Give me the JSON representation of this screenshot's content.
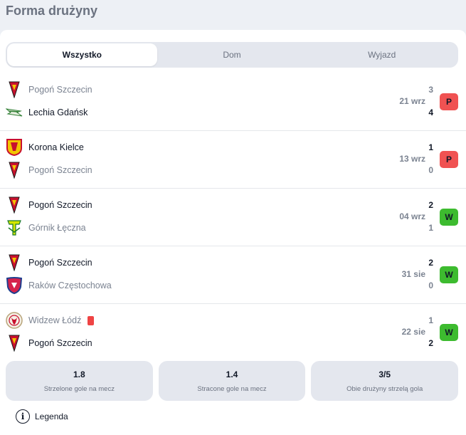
{
  "title": "Forma drużyny",
  "tabs": [
    {
      "label": "Wszystko",
      "active": true
    },
    {
      "label": "Dom",
      "active": false
    },
    {
      "label": "Wyjazd",
      "active": false
    }
  ],
  "matches": [
    {
      "home": {
        "name": "Pogoń Szczecin",
        "crest": "pogon-crest-icon",
        "score": "3",
        "winner": false
      },
      "away": {
        "name": "Lechia Gdańsk",
        "crest": "lechia-crest-icon",
        "score": "4",
        "winner": true
      },
      "date": "21 wrz",
      "result": "P",
      "result_type": "lose"
    },
    {
      "home": {
        "name": "Korona Kielce",
        "crest": "korona-crest-icon",
        "score": "1",
        "winner": true
      },
      "away": {
        "name": "Pogoń Szczecin",
        "crest": "pogon-crest-icon",
        "score": "0",
        "winner": false
      },
      "date": "13 wrz",
      "result": "P",
      "result_type": "lose"
    },
    {
      "home": {
        "name": "Pogoń Szczecin",
        "crest": "pogon-crest-icon",
        "score": "2",
        "winner": true
      },
      "away": {
        "name": "Górnik Łęczna",
        "crest": "gornik-crest-icon",
        "score": "1",
        "winner": false
      },
      "date": "04 wrz",
      "result": "W",
      "result_type": "win"
    },
    {
      "home": {
        "name": "Pogoń Szczecin",
        "crest": "pogon-crest-icon",
        "score": "2",
        "winner": true
      },
      "away": {
        "name": "Raków Częstochowa",
        "crest": "rakow-crest-icon",
        "score": "0",
        "winner": false
      },
      "date": "31 sie",
      "result": "W",
      "result_type": "win"
    },
    {
      "home": {
        "name": "Widzew Łódź",
        "crest": "widzew-crest-icon",
        "score": "1",
        "winner": false,
        "red_card": true
      },
      "away": {
        "name": "Pogoń Szczecin",
        "crest": "pogon-crest-icon",
        "score": "2",
        "winner": true
      },
      "date": "22 sie",
      "result": "W",
      "result_type": "win"
    }
  ],
  "stats": [
    {
      "value": "1.8",
      "label": "Strzelone gole na mecz"
    },
    {
      "value": "1.4",
      "label": "Stracone gole na mecz"
    },
    {
      "value": "3/5",
      "label": "Obie drużyny strzelą gola"
    }
  ],
  "legend": {
    "icon": "info-icon",
    "label": "Legenda"
  },
  "colors": {
    "win": "#3dbb2f",
    "lose": "#f05252",
    "pogon_red": "#c8102e",
    "pogon_gold": "#f2c500",
    "rakow_red": "#d6214b",
    "rakow_blue": "#1f3f8f"
  }
}
